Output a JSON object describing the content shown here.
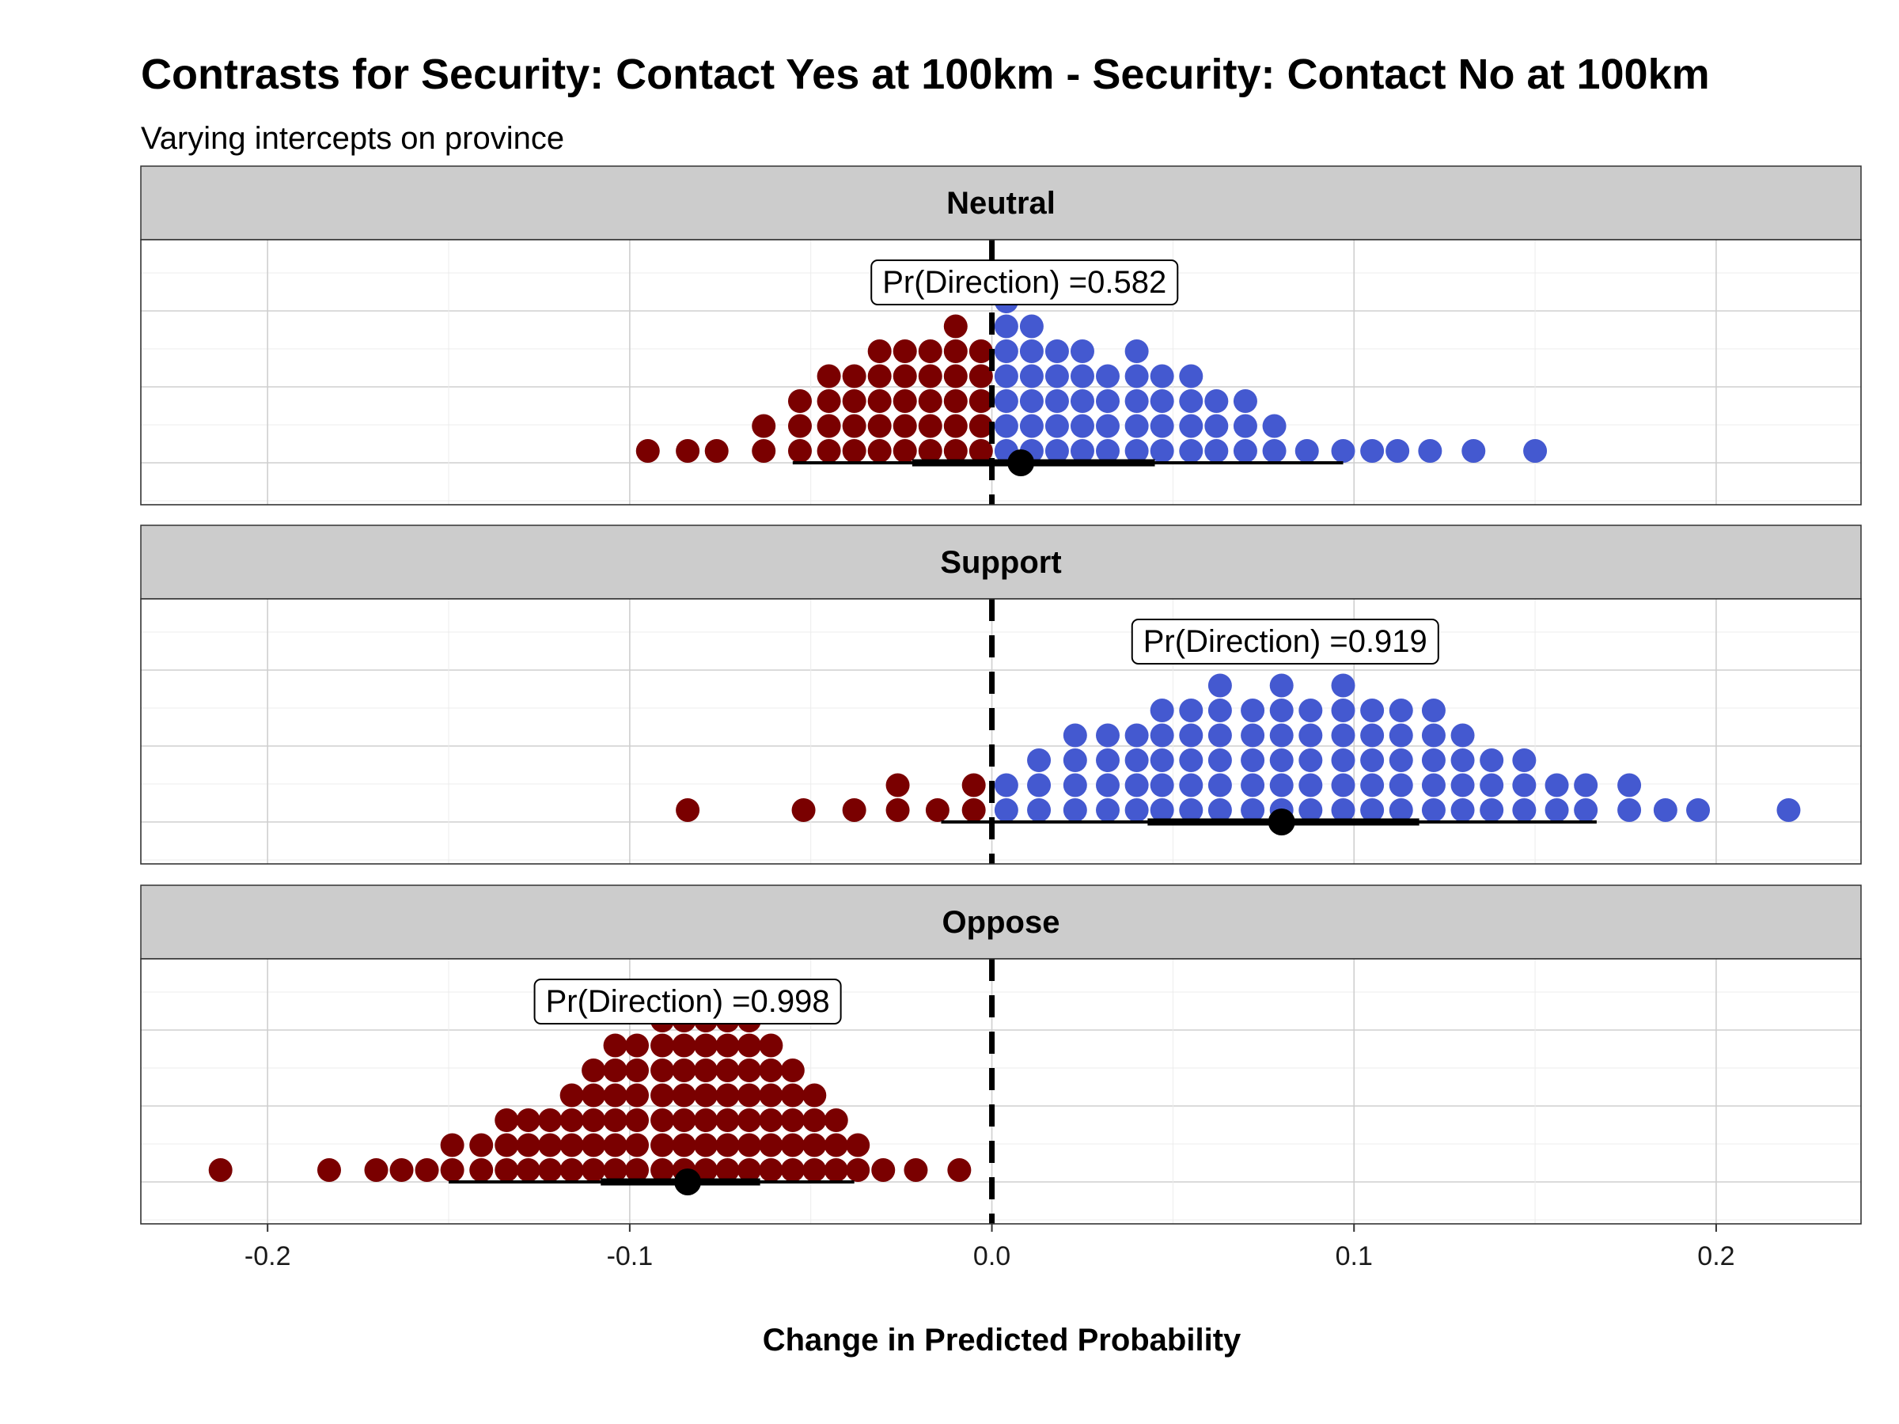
{
  "chart_data": {
    "type": "dotplot",
    "title": "Contrasts for Security: Contact Yes at 100km - Security: Contact No at 100km",
    "subtitle": "Varying intercepts on province",
    "xlabel": "Change in Predicted Probability",
    "xlim": [
      -0.235,
      0.24
    ],
    "x_ticks": [
      -0.2,
      -0.1,
      0.0,
      0.1,
      0.2
    ],
    "x_tick_labels": [
      "-0.2",
      "-0.1",
      "0.0",
      "0.1",
      "0.2"
    ],
    "reference_line": 0,
    "grid": true,
    "colors": {
      "negative": "#7a0000",
      "positive": "#4459d0",
      "interval": "#000000",
      "strip_bg": "#cccccc"
    },
    "panels": [
      {
        "name": "Neutral",
        "pd_label": "Pr(Direction) =0.582",
        "pd_x": 0.009,
        "point": 0.008,
        "interval_66": [
          -0.022,
          0.045
        ],
        "interval_95": [
          -0.055,
          0.097
        ],
        "columns": [
          {
            "x": -0.095,
            "n": 1
          },
          {
            "x": -0.084,
            "n": 1
          },
          {
            "x": -0.076,
            "n": 1
          },
          {
            "x": -0.063,
            "n": 2
          },
          {
            "x": -0.053,
            "n": 3
          },
          {
            "x": -0.045,
            "n": 4
          },
          {
            "x": -0.038,
            "n": 4
          },
          {
            "x": -0.031,
            "n": 5
          },
          {
            "x": -0.024,
            "n": 5
          },
          {
            "x": -0.017,
            "n": 5
          },
          {
            "x": -0.01,
            "n": 6
          },
          {
            "x": -0.003,
            "n": 5
          },
          {
            "x": 0.004,
            "n": 7
          },
          {
            "x": 0.011,
            "n": 6
          },
          {
            "x": 0.018,
            "n": 5
          },
          {
            "x": 0.025,
            "n": 5
          },
          {
            "x": 0.032,
            "n": 4
          },
          {
            "x": 0.04,
            "n": 5
          },
          {
            "x": 0.047,
            "n": 4
          },
          {
            "x": 0.055,
            "n": 4
          },
          {
            "x": 0.062,
            "n": 3
          },
          {
            "x": 0.07,
            "n": 3
          },
          {
            "x": 0.078,
            "n": 2
          },
          {
            "x": 0.087,
            "n": 1
          },
          {
            "x": 0.097,
            "n": 1
          },
          {
            "x": 0.105,
            "n": 1
          },
          {
            "x": 0.112,
            "n": 1
          },
          {
            "x": 0.121,
            "n": 1
          },
          {
            "x": 0.133,
            "n": 1
          },
          {
            "x": 0.15,
            "n": 1
          }
        ]
      },
      {
        "name": "Support",
        "pd_label": "Pr(Direction) =0.919",
        "pd_x": 0.081,
        "point": 0.08,
        "interval_66": [
          0.043,
          0.118
        ],
        "interval_95": [
          -0.014,
          0.167
        ],
        "columns": [
          {
            "x": -0.084,
            "n": 1
          },
          {
            "x": -0.052,
            "n": 1
          },
          {
            "x": -0.038,
            "n": 1
          },
          {
            "x": -0.026,
            "n": 2
          },
          {
            "x": -0.015,
            "n": 1
          },
          {
            "x": -0.005,
            "n": 2
          },
          {
            "x": 0.004,
            "n": 2
          },
          {
            "x": 0.013,
            "n": 3
          },
          {
            "x": 0.023,
            "n": 4
          },
          {
            "x": 0.032,
            "n": 4
          },
          {
            "x": 0.04,
            "n": 4
          },
          {
            "x": 0.047,
            "n": 5
          },
          {
            "x": 0.055,
            "n": 5
          },
          {
            "x": 0.063,
            "n": 6
          },
          {
            "x": 0.072,
            "n": 5
          },
          {
            "x": 0.08,
            "n": 6
          },
          {
            "x": 0.088,
            "n": 5
          },
          {
            "x": 0.097,
            "n": 6
          },
          {
            "x": 0.105,
            "n": 5
          },
          {
            "x": 0.113,
            "n": 5
          },
          {
            "x": 0.122,
            "n": 5
          },
          {
            "x": 0.13,
            "n": 4
          },
          {
            "x": 0.138,
            "n": 3
          },
          {
            "x": 0.147,
            "n": 3
          },
          {
            "x": 0.156,
            "n": 2
          },
          {
            "x": 0.164,
            "n": 2
          },
          {
            "x": 0.176,
            "n": 2
          },
          {
            "x": 0.186,
            "n": 1
          },
          {
            "x": 0.195,
            "n": 1
          },
          {
            "x": 0.22,
            "n": 1
          }
        ]
      },
      {
        "name": "Oppose",
        "pd_label": "Pr(Direction) =0.998",
        "pd_x": -0.084,
        "point": -0.084,
        "interval_66": [
          -0.108,
          -0.064
        ],
        "interval_95": [
          -0.15,
          -0.038
        ],
        "columns": [
          {
            "x": -0.213,
            "n": 1
          },
          {
            "x": -0.183,
            "n": 1
          },
          {
            "x": -0.17,
            "n": 1
          },
          {
            "x": -0.163,
            "n": 1
          },
          {
            "x": -0.156,
            "n": 1
          },
          {
            "x": -0.149,
            "n": 2
          },
          {
            "x": -0.141,
            "n": 2
          },
          {
            "x": -0.134,
            "n": 3
          },
          {
            "x": -0.128,
            "n": 3
          },
          {
            "x": -0.122,
            "n": 3
          },
          {
            "x": -0.116,
            "n": 4
          },
          {
            "x": -0.11,
            "n": 5
          },
          {
            "x": -0.104,
            "n": 6
          },
          {
            "x": -0.098,
            "n": 6
          },
          {
            "x": -0.091,
            "n": 7
          },
          {
            "x": -0.085,
            "n": 7
          },
          {
            "x": -0.079,
            "n": 7
          },
          {
            "x": -0.073,
            "n": 7
          },
          {
            "x": -0.067,
            "n": 7
          },
          {
            "x": -0.061,
            "n": 6
          },
          {
            "x": -0.055,
            "n": 5
          },
          {
            "x": -0.049,
            "n": 4
          },
          {
            "x": -0.043,
            "n": 3
          },
          {
            "x": -0.037,
            "n": 2
          },
          {
            "x": -0.03,
            "n": 1
          },
          {
            "x": -0.021,
            "n": 1
          },
          {
            "x": -0.009,
            "n": 1
          }
        ]
      }
    ]
  }
}
